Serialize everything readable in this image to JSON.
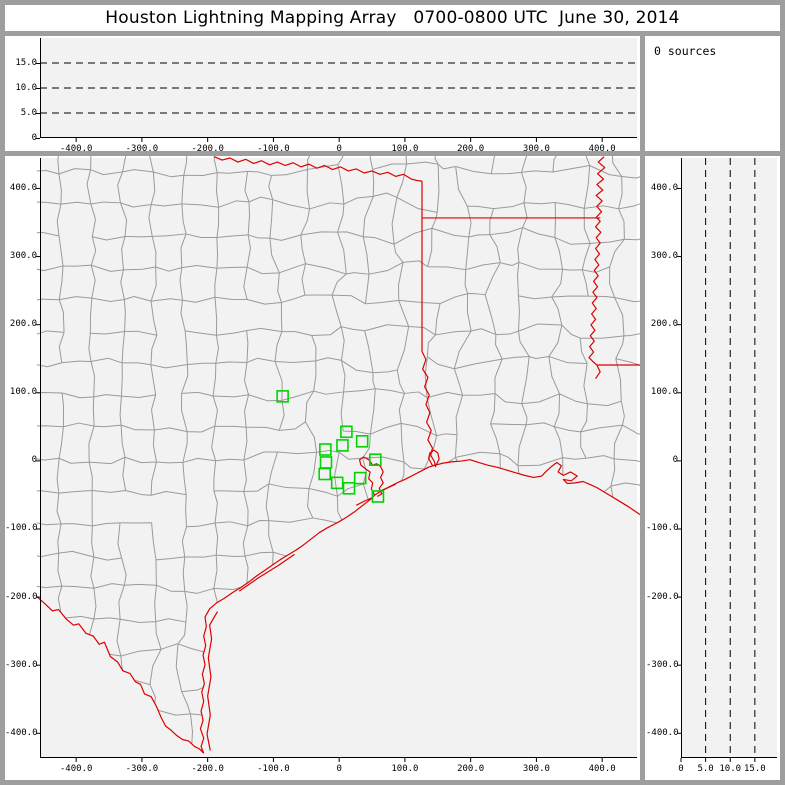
{
  "window": {
    "title": "Houston Lightning Mapping Array   0700-0800 UTC  June 30, 2014"
  },
  "sources_panel": {
    "count_label": "0 sources"
  },
  "colors": {
    "frame_gray": "#9e9e9e",
    "plot_background": "#f2f2f2",
    "county_line_gray": "#9a9a9a",
    "state_border_red": "#dd0000",
    "station_green": "#00d400",
    "axis_black": "#000000"
  },
  "chart_data": [
    {
      "type": "scatter",
      "panel": "altitude-vs-east-west",
      "xlim": [
        -455,
        453
      ],
      "ylim": [
        0,
        20
      ],
      "x_tick_values": [
        -400,
        -300,
        -200,
        -100,
        0,
        100,
        200,
        300,
        400
      ],
      "x_tick_labels": [
        "-400.0",
        "-300.0",
        "-200.0",
        "-100.0",
        "0",
        "100.0",
        "200.0",
        "300.0",
        "400.0"
      ],
      "y_tick_values": [
        0,
        5,
        10,
        15
      ],
      "y_tick_labels": [
        "0",
        "5.0",
        "10.0",
        "15.0"
      ],
      "gridlines": {
        "y_values": [
          5,
          10,
          15
        ],
        "style": "dashed"
      },
      "points": []
    },
    {
      "type": "scatter",
      "panel": "plan-view-map",
      "xlim": [
        -455,
        453
      ],
      "ylim": [
        -437,
        444
      ],
      "x_tick_values": [
        -400,
        -300,
        -200,
        -100,
        0,
        100,
        200,
        300,
        400
      ],
      "x_tick_labels": [
        "-400.0",
        "-300.0",
        "-200.0",
        "-100.0",
        "0",
        "100.0",
        "200.0",
        "300.0",
        "400.0"
      ],
      "y_tick_values": [
        400,
        300,
        200,
        100,
        0,
        -100,
        -200,
        -300,
        -400
      ],
      "y_tick_labels": [
        "400.0",
        "300.0",
        "200.0",
        "100.0",
        "0",
        "-100.0",
        "-200.0",
        "-300.0",
        "-400.0"
      ],
      "map_layers": {
        "county_boundaries": "gray",
        "state_borders_rivers_coastline": "red",
        "lma_stations": "green open squares"
      },
      "stations": [
        [
          -86,
          94
        ],
        [
          11,
          42
        ],
        [
          35,
          28
        ],
        [
          5,
          22
        ],
        [
          -21,
          16
        ],
        [
          -20,
          -3
        ],
        [
          55,
          1
        ],
        [
          -22,
          -20
        ],
        [
          32,
          -26
        ],
        [
          -3,
          -33
        ],
        [
          15,
          -41
        ],
        [
          59,
          -53
        ]
      ]
    },
    {
      "type": "scatter",
      "panel": "altitude-vs-north-south",
      "xlim": [
        0,
        19.5
      ],
      "ylim": [
        -437,
        444
      ],
      "x_tick_values": [
        0,
        5,
        10,
        15
      ],
      "x_tick_labels": [
        "0",
        "5.0",
        "10.0",
        "15.0"
      ],
      "y_tick_values": [
        400,
        300,
        200,
        100,
        0,
        -100,
        -200,
        -300,
        -400
      ],
      "y_tick_labels": [
        "400.0",
        "300.0",
        "200.0",
        "100.0",
        "0",
        "-100.0",
        "-200.0",
        "-300.0",
        "-400.0"
      ],
      "gridlines": {
        "x_values": [
          5,
          10,
          15
        ],
        "style": "dashed"
      },
      "points": []
    }
  ]
}
